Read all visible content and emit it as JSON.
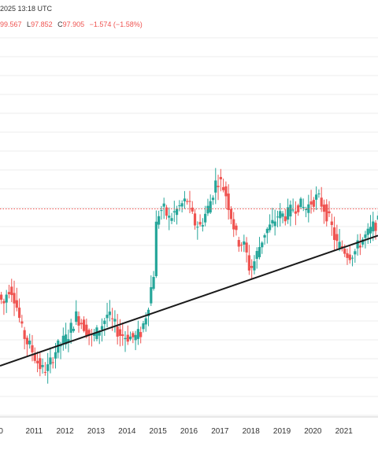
{
  "header": {
    "timestamp": "2025 13:18 UTC",
    "high_text": "99.567",
    "low_label": "L",
    "low_value": "97.852",
    "close_label": "C",
    "close_value": "97.905",
    "change_text": "−1.574 (−1.58%)"
  },
  "colors": {
    "up": "#26a69a",
    "down": "#ef5350",
    "trendline": "#1a1a1a",
    "price_line": "#ef5350",
    "grid": "#eeeeee"
  },
  "chart_data": {
    "type": "candlestick",
    "timeframe": "monthly",
    "x_range": [
      2009.9,
      2022.1
    ],
    "y_range": [
      69,
      122
    ],
    "current_price": 97.905,
    "x_tick_labels": [
      "0",
      "2011",
      "2012",
      "2013",
      "2014",
      "2015",
      "2016",
      "2017",
      "2018",
      "2019",
      "2020",
      "2021"
    ],
    "trendline": {
      "from": {
        "t": 2009.9,
        "price": 76.1
      },
      "to": {
        "t": 2022.1,
        "price": 94.2
      }
    },
    "anchors": [
      [
        2009.9,
        86.0
      ],
      [
        2010.05,
        84.5
      ],
      [
        2010.2,
        87.0
      ],
      [
        2010.35,
        86.5
      ],
      [
        2010.5,
        84.0
      ],
      [
        2010.65,
        81.0
      ],
      [
        2010.8,
        79.5
      ],
      [
        2010.95,
        78.5
      ],
      [
        2011.1,
        77.0
      ],
      [
        2011.3,
        75.5
      ],
      [
        2011.5,
        75.8
      ],
      [
        2011.7,
        78.0
      ],
      [
        2011.9,
        79.2
      ],
      [
        2012.1,
        80.0
      ],
      [
        2012.4,
        83.0
      ],
      [
        2012.6,
        82.0
      ],
      [
        2012.9,
        80.0
      ],
      [
        2013.1,
        80.8
      ],
      [
        2013.4,
        83.2
      ],
      [
        2013.6,
        82.0
      ],
      [
        2013.8,
        80.5
      ],
      [
        2014.0,
        80.2
      ],
      [
        2014.3,
        80.0
      ],
      [
        2014.5,
        80.8
      ],
      [
        2014.7,
        84.0
      ],
      [
        2014.9,
        89.0
      ],
      [
        2015.0,
        97.0
      ],
      [
        2015.2,
        98.0
      ],
      [
        2015.4,
        96.5
      ],
      [
        2015.6,
        97.5
      ],
      [
        2015.8,
        98.5
      ],
      [
        2016.0,
        99.2
      ],
      [
        2016.2,
        96.0
      ],
      [
        2016.4,
        95.5
      ],
      [
        2016.7,
        98.5
      ],
      [
        2016.9,
        101.5
      ],
      [
        2017.0,
        102.0
      ],
      [
        2017.2,
        100.5
      ],
      [
        2017.4,
        97.0
      ],
      [
        2017.6,
        93.5
      ],
      [
        2017.8,
        93.0
      ],
      [
        2017.9,
        91.5
      ],
      [
        2018.0,
        89.5
      ],
      [
        2018.1,
        90.0
      ],
      [
        2018.3,
        92.5
      ],
      [
        2018.5,
        94.8
      ],
      [
        2018.7,
        95.5
      ],
      [
        2018.9,
        97.0
      ],
      [
        2019.2,
        97.0
      ],
      [
        2019.4,
        98.0
      ],
      [
        2019.6,
        98.5
      ],
      [
        2019.8,
        97.8
      ],
      [
        2020.0,
        99.0
      ],
      [
        2020.2,
        99.5
      ],
      [
        2020.4,
        98.0
      ],
      [
        2020.6,
        96.0
      ],
      [
        2020.8,
        93.0
      ],
      [
        2021.0,
        92.5
      ],
      [
        2021.2,
        91.5
      ],
      [
        2021.4,
        92.0
      ],
      [
        2021.6,
        93.5
      ],
      [
        2021.8,
        94.3
      ],
      [
        2022.0,
        95.5
      ],
      [
        2022.1,
        96.0
      ]
    ]
  }
}
